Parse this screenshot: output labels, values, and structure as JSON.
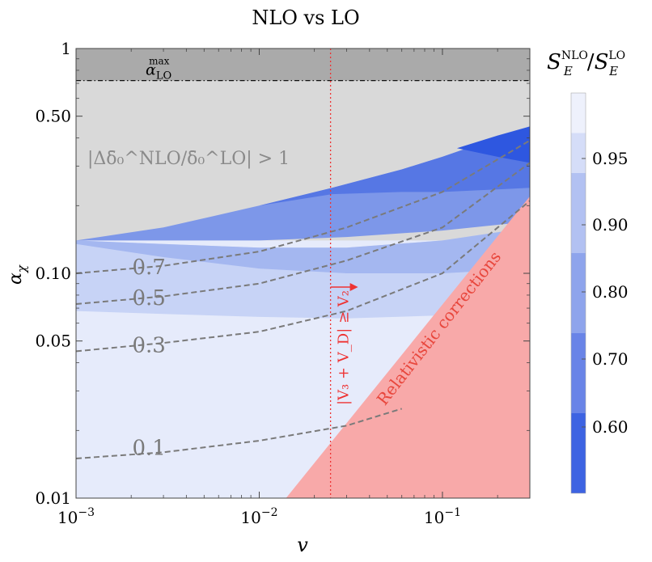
{
  "chart_data": {
    "type": "contour",
    "title": "NLO vs LO",
    "xlabel": "v",
    "ylabel": "α_χ",
    "x_scale": "log",
    "y_scale": "log",
    "xlim": [
      0.001,
      0.3
    ],
    "ylim": [
      0.01,
      1
    ],
    "x_ticks": [
      {
        "value": 0.001,
        "base": "10",
        "exp": "−3"
      },
      {
        "value": 0.01,
        "base": "10",
        "exp": "−2"
      },
      {
        "value": 0.1,
        "base": "10",
        "exp": "−1"
      }
    ],
    "y_ticks": [
      {
        "value": 1,
        "label": "1"
      },
      {
        "value": 0.5,
        "label": "0.50"
      },
      {
        "value": 0.1,
        "label": "0.10"
      },
      {
        "value": 0.05,
        "label": "0.05"
      },
      {
        "value": 0.01,
        "label": "0.01"
      }
    ],
    "regions": {
      "perturbativity_limit": {
        "label_base": "α",
        "label_sub": "LO",
        "label_sup": "max",
        "alpha_max": 0.72,
        "color": "#aaaaaa"
      },
      "nlo_large_correction": {
        "label": "|Δδ̄₀^NLO/δ̄₀^LO| > 1",
        "color": "#d9d9d9"
      },
      "relativistic": {
        "label": "Relativistic corrections",
        "color": "#f8a9a9",
        "boundary": [
          [
            0.014,
            0.01
          ],
          [
            0.3,
            0.22
          ]
        ]
      }
    },
    "vertical_line": {
      "x": 0.0245,
      "label": "|V₃ + V_D| ≥ V₂",
      "color": "#e33"
    },
    "contours": [
      {
        "label": "0.1",
        "points": [
          [
            0.001,
            0.015
          ],
          [
            0.003,
            0.016
          ],
          [
            0.01,
            0.018
          ],
          [
            0.03,
            0.021
          ],
          [
            0.06,
            0.025
          ]
        ]
      },
      {
        "label": "0.3",
        "points": [
          [
            0.001,
            0.045
          ],
          [
            0.003,
            0.049
          ],
          [
            0.01,
            0.055
          ],
          [
            0.03,
            0.068
          ],
          [
            0.1,
            0.1
          ],
          [
            0.3,
            0.21
          ]
        ]
      },
      {
        "label": "0.5",
        "points": [
          [
            0.001,
            0.073
          ],
          [
            0.003,
            0.079
          ],
          [
            0.01,
            0.09
          ],
          [
            0.03,
            0.114
          ],
          [
            0.1,
            0.16
          ],
          [
            0.3,
            0.31
          ]
        ]
      },
      {
        "label": "0.7",
        "points": [
          [
            0.001,
            0.1
          ],
          [
            0.003,
            0.108
          ],
          [
            0.01,
            0.125
          ],
          [
            0.03,
            0.16
          ],
          [
            0.1,
            0.23
          ],
          [
            0.3,
            0.39
          ]
        ]
      }
    ],
    "bands": [
      {
        "ratio_range": [
          0.95,
          1.0
        ],
        "color": "#e6ebfb",
        "upper": [
          [
            0.001,
            0.14
          ],
          [
            0.3,
            0.14
          ]
        ]
      },
      {
        "ratio_range": [
          0.9,
          0.95
        ],
        "color": "#c7d3f6",
        "upper": [
          [
            0.001,
            0.14
          ],
          [
            0.003,
            0.135
          ],
          [
            0.01,
            0.13
          ],
          [
            0.03,
            0.13
          ],
          [
            0.1,
            0.14
          ],
          [
            0.3,
            0.16
          ]
        ],
        "lower": [
          [
            0.001,
            0.068
          ],
          [
            0.003,
            0.066
          ],
          [
            0.01,
            0.064
          ],
          [
            0.03,
            0.063
          ],
          [
            0.1,
            0.065
          ],
          [
            0.3,
            0.07
          ]
        ]
      },
      {
        "ratio_range": [
          0.8,
          0.9
        ],
        "color": "#a4b7f0",
        "upper": [
          [
            0.001,
            0.14
          ],
          [
            0.003,
            0.135
          ],
          [
            0.01,
            0.13
          ],
          [
            0.03,
            0.13
          ],
          [
            0.1,
            0.14
          ],
          [
            0.3,
            0.16
          ]
        ],
        "lower": [
          [
            0.001,
            0.135
          ],
          [
            0.003,
            0.118
          ],
          [
            0.01,
            0.105
          ],
          [
            0.03,
            0.1
          ],
          [
            0.1,
            0.1
          ],
          [
            0.3,
            0.105
          ]
        ]
      },
      {
        "ratio_range": [
          0.7,
          0.8
        ],
        "color": "#7d97e9",
        "upper": [
          [
            0.001,
            0.14
          ],
          [
            0.003,
            0.16
          ],
          [
            0.01,
            0.2
          ],
          [
            0.025,
            0.24
          ],
          [
            0.06,
            0.29
          ],
          [
            0.1,
            0.33
          ],
          [
            0.3,
            0.45
          ]
        ],
        "lower": [
          [
            0.001,
            0.14
          ],
          [
            0.003,
            0.14
          ],
          [
            0.01,
            0.14
          ],
          [
            0.03,
            0.145
          ],
          [
            0.1,
            0.155
          ],
          [
            0.3,
            0.17
          ]
        ]
      },
      {
        "ratio_range": [
          0.6,
          0.7
        ],
        "color": "#5677e4",
        "upper": [
          [
            0.01,
            0.2
          ],
          [
            0.025,
            0.24
          ],
          [
            0.06,
            0.29
          ],
          [
            0.1,
            0.33
          ],
          [
            0.3,
            0.45
          ]
        ],
        "lower": [
          [
            0.01,
            0.2
          ],
          [
            0.025,
            0.225
          ],
          [
            0.06,
            0.23
          ],
          [
            0.1,
            0.23
          ],
          [
            0.3,
            0.24
          ]
        ]
      },
      {
        "ratio_range": [
          0.5,
          0.6
        ],
        "color": "#2e57e0",
        "upper": [
          [
            0.12,
            0.36
          ],
          [
            0.2,
            0.41
          ],
          [
            0.3,
            0.45
          ]
        ],
        "lower": [
          [
            0.12,
            0.36
          ],
          [
            0.2,
            0.33
          ],
          [
            0.3,
            0.31
          ]
        ]
      }
    ],
    "colorbar": {
      "title_base": "S",
      "title_sub": "E",
      "title_sup_num": "NLO",
      "title_sup_den": "LO",
      "ticks": [
        "0.95",
        "0.90",
        "0.80",
        "0.70",
        "0.60"
      ],
      "levels": [
        {
          "range": [
            0.95,
            1.0
          ],
          "color": "#eef1fc"
        },
        {
          "range": [
            0.9,
            0.95
          ],
          "color": "#d5ddf8"
        },
        {
          "range": [
            0.8,
            0.9
          ],
          "color": "#b2c1f2"
        },
        {
          "range": [
            0.7,
            0.8
          ],
          "color": "#8ea4ec"
        },
        {
          "range": [
            0.6,
            0.7
          ],
          "color": "#6984e7"
        },
        {
          "range": [
            0.5,
            0.6
          ],
          "color": "#3d63e2"
        }
      ]
    }
  }
}
